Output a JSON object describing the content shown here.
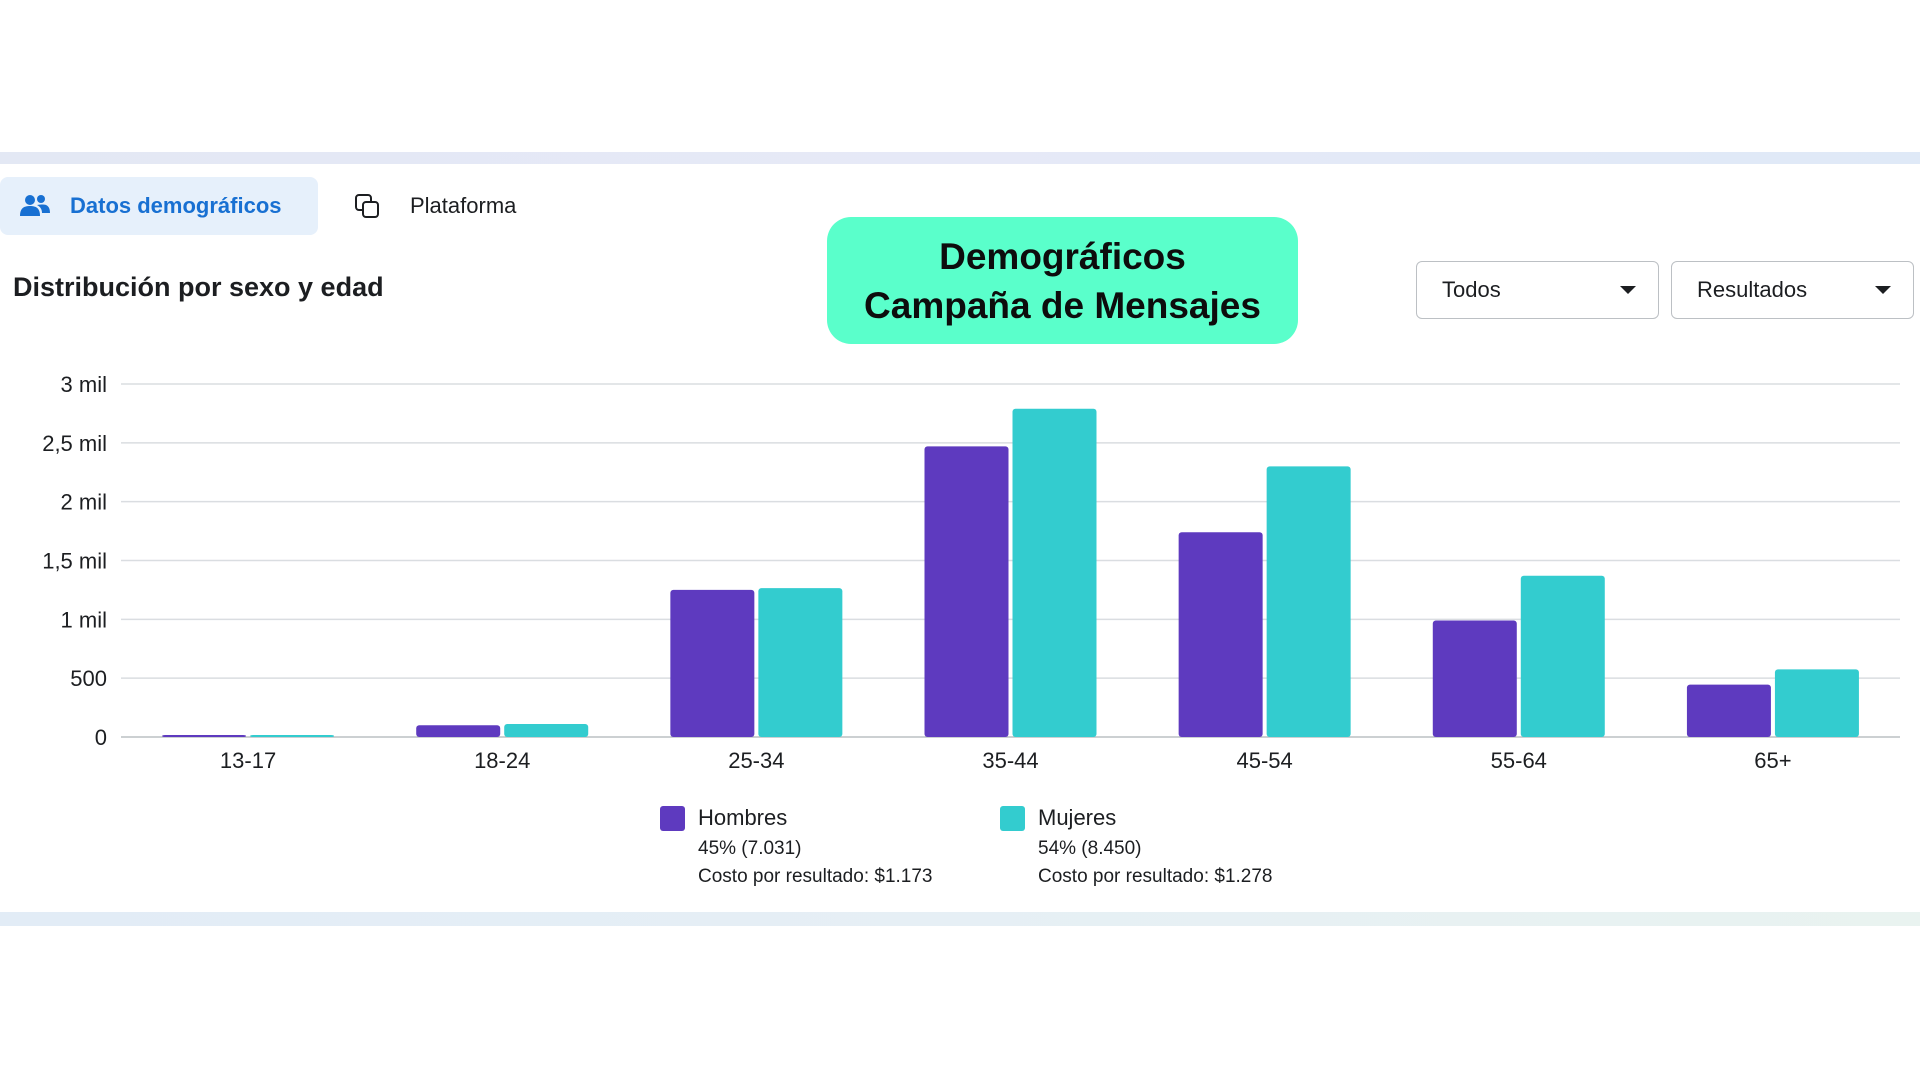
{
  "tabs": [
    {
      "label": "Datos demográficos",
      "icon": "people-icon",
      "active": true
    },
    {
      "label": "Plataforma",
      "icon": "stacked-squares-icon",
      "active": false
    }
  ],
  "section_title": "Distribución por sexo y edad",
  "badge": {
    "line1": "Demográficos",
    "line2": "Campaña de Mensajes"
  },
  "filters": {
    "audience": {
      "selected": "Todos"
    },
    "metric": {
      "selected": "Resultados"
    }
  },
  "colors": {
    "men": "#5e3abf",
    "women": "#33cccf",
    "badge": "#5affcb",
    "active_tab": "#1870d2"
  },
  "chart_data": {
    "type": "bar",
    "title": "Distribución por sexo y edad",
    "xlabel": "",
    "ylabel": "",
    "categories": [
      "13-17",
      "18-24",
      "25-34",
      "35-44",
      "45-54",
      "55-64",
      "65+"
    ],
    "series": [
      {
        "name": "Hombres",
        "values": [
          15,
          100,
          1250,
          2470,
          1740,
          990,
          445
        ]
      },
      {
        "name": "Mujeres",
        "values": [
          15,
          110,
          1265,
          2790,
          2300,
          1370,
          575
        ]
      }
    ],
    "ylim": [
      0,
      3000
    ],
    "yticks": [
      0,
      500,
      1000,
      1500,
      2000,
      2500,
      3000
    ],
    "ytick_labels": [
      "0",
      "500",
      "1 mil",
      "1,5 mil",
      "2 mil",
      "2,5 mil",
      "3 mil"
    ],
    "grid": true,
    "legend_position": "bottom-center",
    "legend": [
      {
        "name": "Hombres",
        "share": "45% (7.031)",
        "cost": "Costo por resultado: $1.173"
      },
      {
        "name": "Mujeres",
        "share": "54% (8.450)",
        "cost": "Costo por resultado: $1.278"
      }
    ]
  }
}
